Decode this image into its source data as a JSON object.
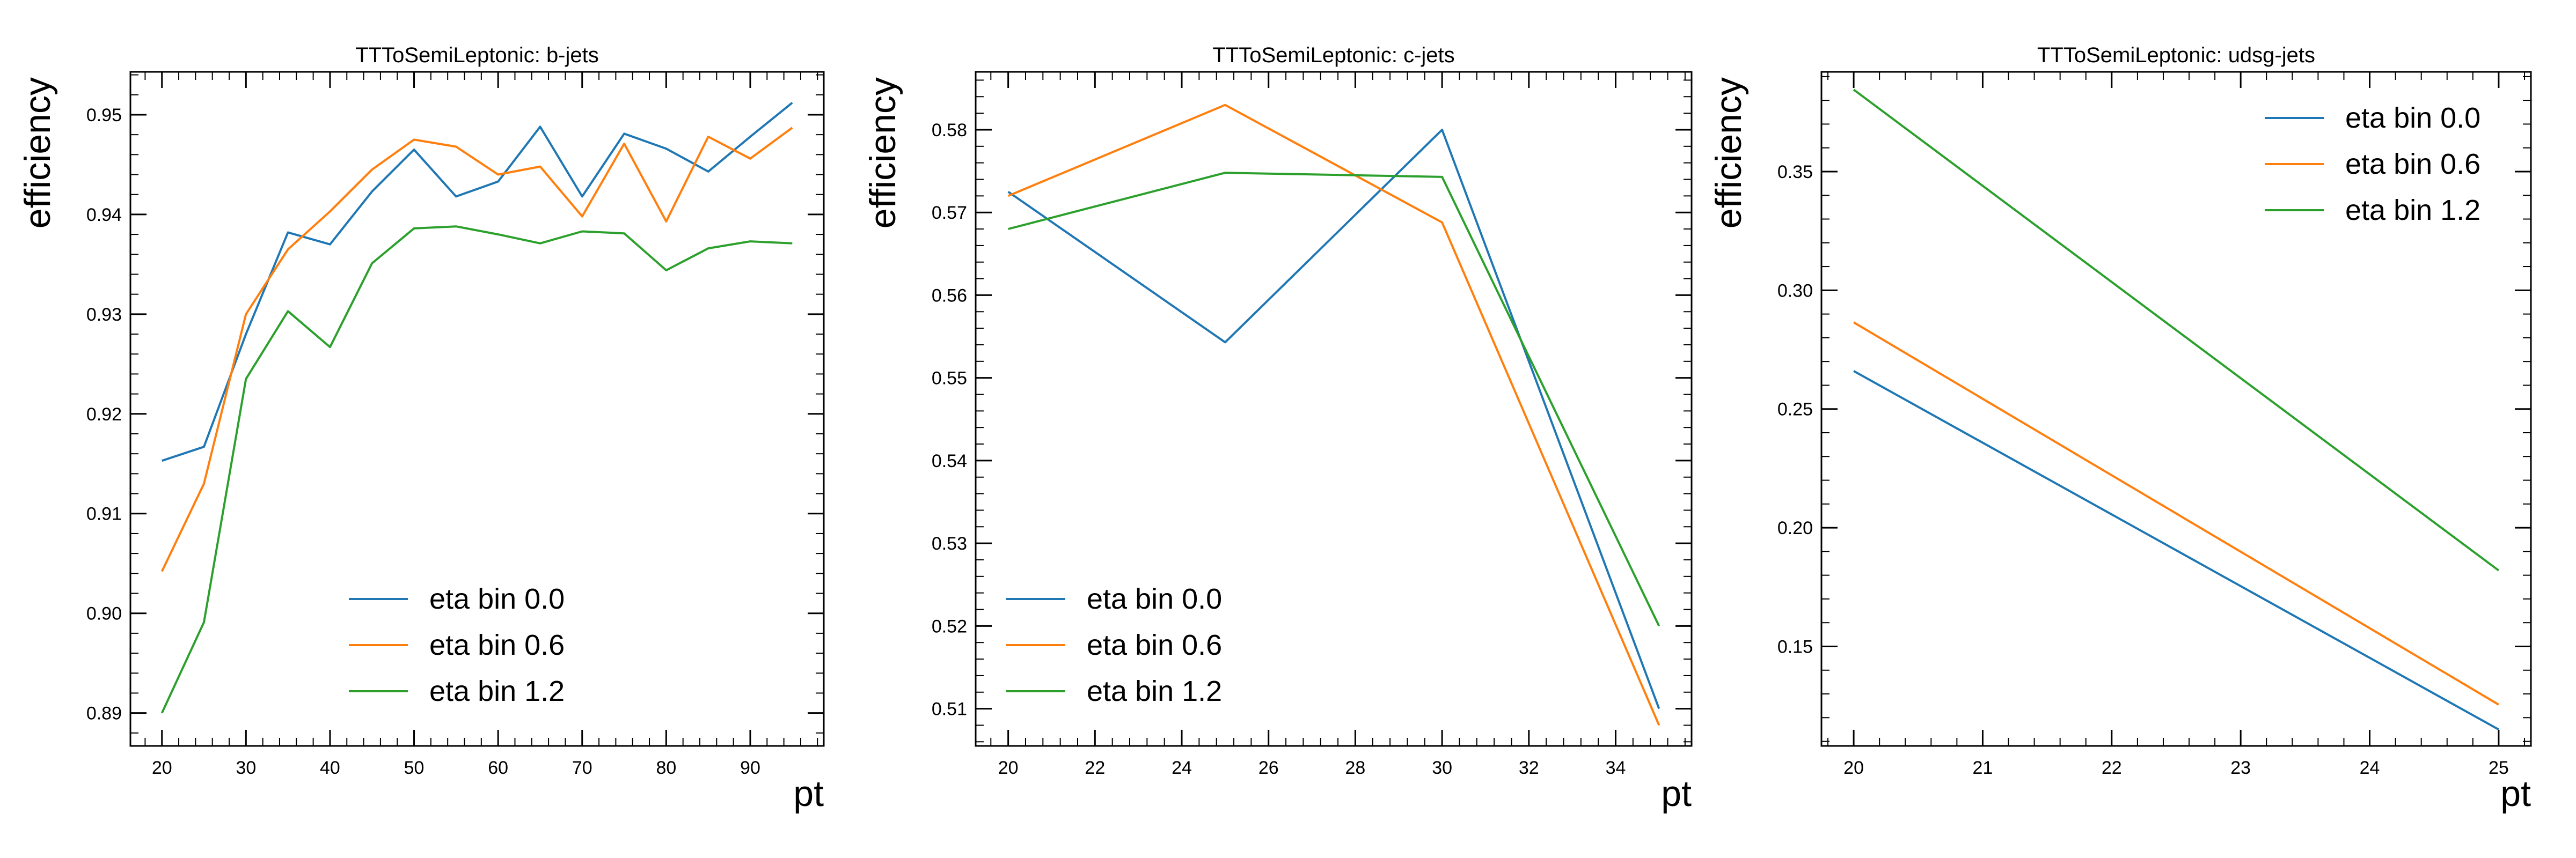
{
  "chart_data": [
    {
      "type": "line",
      "title": "TTToSemiLeptonic: b-jets",
      "xlabel": "pt",
      "ylabel": "efficiency",
      "xlim": [
        16.25,
        98.75
      ],
      "ylim": [
        0.8867,
        0.9543
      ],
      "xticks": [
        20,
        30,
        40,
        50,
        60,
        70,
        80,
        90
      ],
      "xtick_labels": [
        "20",
        "30",
        "40",
        "50",
        "60",
        "70",
        "80",
        "90"
      ],
      "yticks": [
        0.89,
        0.9,
        0.91,
        0.92,
        0.93,
        0.94,
        0.95
      ],
      "ytick_labels": [
        "0.89",
        "0.90",
        "0.91",
        "0.92",
        "0.93",
        "0.94",
        "0.95"
      ],
      "legend_position": "lower-right",
      "x": [
        20,
        25,
        30,
        35,
        40,
        45,
        50,
        55,
        60,
        65,
        70,
        75,
        80,
        85,
        90,
        95
      ],
      "series": [
        {
          "name": "eta bin 0.0",
          "color": "#1f77b4",
          "values": [
            0.9153,
            0.9167,
            0.928,
            0.9382,
            0.937,
            0.9423,
            0.9465,
            0.9418,
            0.9433,
            0.9488,
            0.9418,
            0.9481,
            0.9466,
            0.9443,
            0.9478,
            0.9512
          ]
        },
        {
          "name": "eta bin 0.6",
          "color": "#ff7f0e",
          "values": [
            0.9042,
            0.913,
            0.93,
            0.9365,
            0.9403,
            0.9445,
            0.9475,
            0.9468,
            0.944,
            0.9448,
            0.9398,
            0.9471,
            0.9393,
            0.9478,
            0.9456,
            0.9487
          ]
        },
        {
          "name": "eta bin 1.2",
          "color": "#2ca02c",
          "values": [
            0.89,
            0.8991,
            0.9235,
            0.9303,
            0.9267,
            0.9351,
            0.9386,
            0.9388,
            0.938,
            0.9371,
            0.9383,
            0.9381,
            0.9344,
            0.9366,
            0.9373,
            0.9371
          ]
        }
      ]
    },
    {
      "type": "line",
      "title": "TTToSemiLeptonic: c-jets",
      "xlabel": "pt",
      "ylabel": "efficiency",
      "xlim": [
        19.25,
        35.75
      ],
      "ylim": [
        0.5055,
        0.587
      ],
      "xticks": [
        20,
        22,
        24,
        26,
        28,
        30,
        32,
        34
      ],
      "xtick_labels": [
        "20",
        "22",
        "24",
        "26",
        "28",
        "30",
        "32",
        "34"
      ],
      "yticks": [
        0.51,
        0.52,
        0.53,
        0.54,
        0.55,
        0.56,
        0.57,
        0.58
      ],
      "ytick_labels": [
        "0.51",
        "0.52",
        "0.53",
        "0.54",
        "0.55",
        "0.56",
        "0.57",
        "0.58"
      ],
      "legend_position": "lower-left",
      "x": [
        20,
        25,
        30,
        35
      ],
      "series": [
        {
          "name": "eta bin 0.0",
          "color": "#1f77b4",
          "values": [
            0.5725,
            0.5543,
            0.58,
            0.51
          ]
        },
        {
          "name": "eta bin 0.6",
          "color": "#ff7f0e",
          "values": [
            0.572,
            0.583,
            0.5688,
            0.508
          ]
        },
        {
          "name": "eta bin 1.2",
          "color": "#2ca02c",
          "values": [
            0.568,
            0.5748,
            0.5743,
            0.52
          ]
        }
      ]
    },
    {
      "type": "line",
      "title": "TTToSemiLeptonic: udsg-jets",
      "xlabel": "pt",
      "ylabel": "efficiency",
      "xlim": [
        19.75,
        25.25
      ],
      "ylim": [
        0.1081,
        0.392
      ],
      "xticks": [
        20,
        21,
        22,
        23,
        24,
        25
      ],
      "xtick_labels": [
        "20",
        "21",
        "22",
        "23",
        "24",
        "25"
      ],
      "yticks": [
        0.15,
        0.2,
        0.25,
        0.3,
        0.35
      ],
      "ytick_labels": [
        "0.15",
        "0.20",
        "0.25",
        "0.30",
        "0.35"
      ],
      "legend_position": "top-right",
      "x": [
        20,
        25
      ],
      "series": [
        {
          "name": "eta bin 0.0",
          "color": "#1f77b4",
          "values": [
            0.266,
            0.115
          ]
        },
        {
          "name": "eta bin 0.6",
          "color": "#ff7f0e",
          "values": [
            0.2865,
            0.1255
          ]
        },
        {
          "name": "eta bin 1.2",
          "color": "#2ca02c",
          "values": [
            0.3845,
            0.182
          ]
        }
      ]
    }
  ]
}
